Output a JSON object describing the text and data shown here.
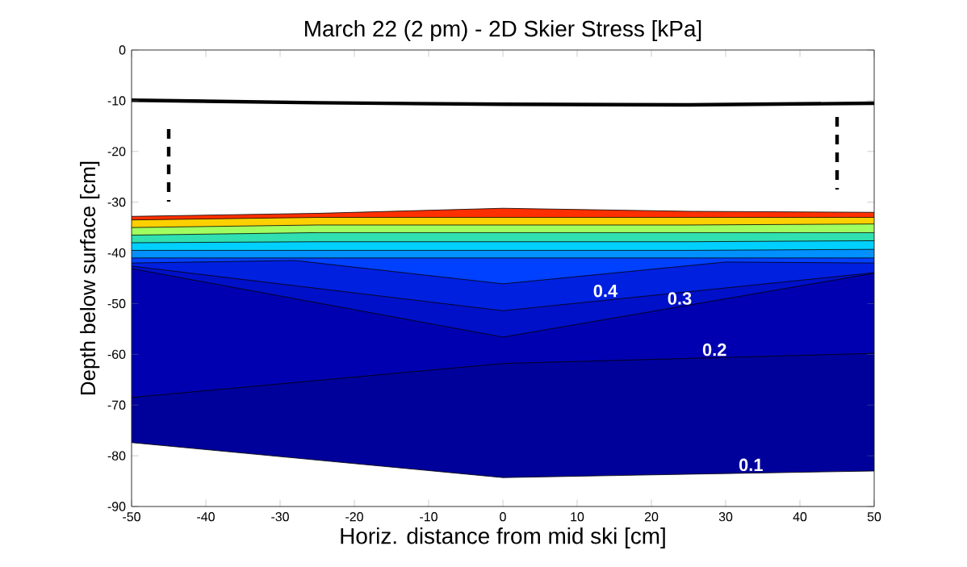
{
  "chart_data": {
    "type": "area",
    "title": "March 22 (2 pm)  -  2D Skier Stress [kPa]",
    "xlabel": "Horiz. distance from mid ski [cm]",
    "ylabel": "Depth below surface [cm]",
    "xlim": [
      -50,
      50
    ],
    "ylim": [
      -90,
      0
    ],
    "xticks": [
      -50,
      -40,
      -30,
      -20,
      -10,
      0,
      10,
      20,
      30,
      40,
      50
    ],
    "yticks": [
      -90,
      -80,
      -70,
      -60,
      -50,
      -40,
      -30,
      -20,
      -10,
      0
    ],
    "series": [
      {
        "color": "#00009a",
        "x": [
          -50,
          0,
          30,
          50
        ],
        "values": [
          -77.4,
          -84.3,
          -83.5,
          -83.0
        ]
      },
      {
        "color": "#0000b0",
        "x": [
          -50,
          0,
          50
        ],
        "values": [
          -68.5,
          -61.8,
          -59.8
        ]
      },
      {
        "color": "#0010c8",
        "x": [
          -50,
          0,
          50
        ],
        "values": [
          -43.1,
          -56.6,
          -44.0
        ]
      },
      {
        "color": "#0020e0",
        "x": [
          -50,
          0,
          50
        ],
        "values": [
          -42.6,
          -51.4,
          -43.9
        ]
      },
      {
        "color": "#0040ff",
        "x": [
          -50,
          -28,
          0,
          30,
          50
        ],
        "values": [
          -42.0,
          -41.5,
          -46.1,
          -41.8,
          -42.0
        ]
      },
      {
        "color": "#0090ff",
        "x": [
          -50,
          -25,
          0,
          25,
          50
        ],
        "values": [
          -41.0,
          -41.0,
          -41.0,
          -41.0,
          -41.0
        ]
      },
      {
        "color": "#00d0ff",
        "x": [
          -50,
          -25,
          0,
          25,
          50
        ],
        "values": [
          -39.5,
          -39.5,
          -39.5,
          -39.5,
          -39.3
        ]
      },
      {
        "color": "#30e0b0",
        "x": [
          -50,
          -25,
          0,
          25,
          50
        ],
        "values": [
          -38.0,
          -37.8,
          -37.8,
          -37.8,
          -37.6
        ]
      },
      {
        "color": "#a0ff60",
        "x": [
          -50,
          -25,
          0,
          25,
          50
        ],
        "values": [
          -36.5,
          -36.0,
          -36.0,
          -36.0,
          -36.0
        ]
      },
      {
        "color": "#ffd000",
        "x": [
          -50,
          -25,
          0,
          25,
          50
        ],
        "values": [
          -35.0,
          -34.5,
          -34.5,
          -34.5,
          -34.3
        ]
      },
      {
        "color": "#ff3000",
        "x": [
          -50,
          -25,
          0,
          25,
          50
        ],
        "values": [
          -33.5,
          -33.0,
          -33.0,
          -33.0,
          -33.0
        ]
      },
      {
        "color": "#ffffff",
        "x": [
          -50,
          -25,
          0,
          25,
          50
        ],
        "values": [
          -32.8,
          -32.2,
          -31.2,
          -31.8,
          -32.0
        ]
      },
      {
        "type": "line",
        "color": "#000000",
        "x": [
          -50,
          -25,
          0,
          25,
          50
        ],
        "values": [
          -9.9,
          -10.4,
          -10.7,
          -10.8,
          -10.5
        ]
      },
      {
        "type": "line",
        "color": "#000000",
        "line_style": "dashed",
        "x": [
          -45,
          -45
        ],
        "values": [
          -15.6,
          -29.9
        ]
      },
      {
        "type": "line",
        "color": "#000000",
        "line_style": "dashed",
        "x": [
          45,
          45
        ],
        "values": [
          -13.2,
          -27.5
        ]
      }
    ],
    "annotations": [
      {
        "text": "0.4",
        "x": 13.8,
        "y": -49.1
      },
      {
        "text": "0.3",
        "x": 23.8,
        "y": -50.6
      },
      {
        "text": "0.2",
        "x": 28.5,
        "y": -60.7
      },
      {
        "text": "0.1",
        "x": 33.4,
        "y": -83.4
      }
    ]
  }
}
